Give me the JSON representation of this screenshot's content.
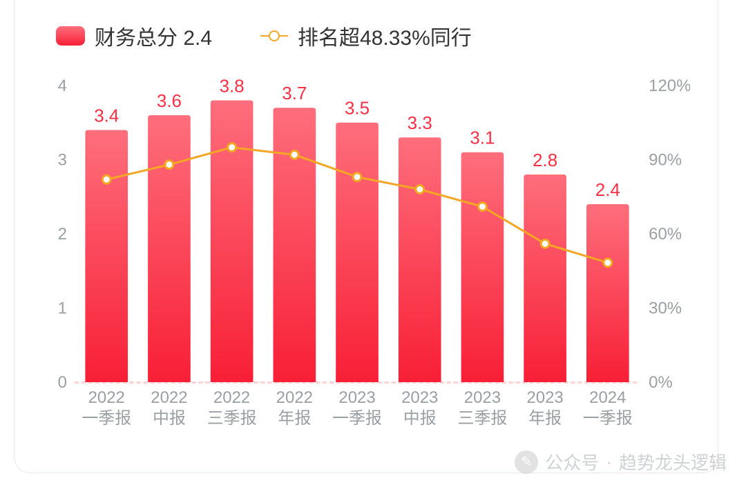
{
  "legend": {
    "bar_label": "财务总分 2.4",
    "line_label": "排名超48.33%同行"
  },
  "chart": {
    "type": "bar+line",
    "categories": [
      {
        "year": "2022",
        "period": "一季报"
      },
      {
        "year": "2022",
        "period": "中报"
      },
      {
        "year": "2022",
        "period": "三季报"
      },
      {
        "year": "2022",
        "period": "年报"
      },
      {
        "year": "2023",
        "period": "一季报"
      },
      {
        "year": "2023",
        "period": "中报"
      },
      {
        "year": "2023",
        "period": "三季报"
      },
      {
        "year": "2023",
        "period": "年报"
      },
      {
        "year": "2024",
        "period": "一季报"
      }
    ],
    "bar_values": [
      3.4,
      3.6,
      3.8,
      3.7,
      3.5,
      3.3,
      3.1,
      2.8,
      2.4
    ],
    "line_values_pct": [
      82,
      88,
      95,
      92,
      83,
      78,
      71,
      56,
      48.33
    ],
    "bar_gradient_top": "#fe6e7c",
    "bar_gradient_bottom": "#f81f36",
    "bar_label_color": "#fb2f43",
    "line_color": "#f5a623",
    "line_marker_fill": "#ffffff",
    "line_marker_stroke": "#f5a623",
    "line_marker_radius": 6,
    "line_width": 3,
    "axis_label_color": "#9a9fa3",
    "axis_label_fontsize": 24,
    "bar_value_fontsize": 26,
    "left_axis": {
      "min": 0,
      "max": 4,
      "ticks": [
        0,
        1,
        2,
        3,
        4
      ]
    },
    "right_axis": {
      "min": 0,
      "max": 120,
      "ticks_pct": [
        "0%",
        "30%",
        "60%",
        "90%",
        "120%"
      ]
    },
    "baseline_color": "#ffd2d6",
    "baseline_dash": "4 6",
    "bar_width_ratio": 0.68,
    "bar_top_radius": 4,
    "plot_bg": "#ffffff"
  },
  "watermark": {
    "source_label": "公众号",
    "dot": "·",
    "account": "趋势龙头逻辑",
    "icon_glyph": "✎"
  },
  "colors": {
    "card_border": "#f3e4e6",
    "text_primary": "#333333"
  }
}
